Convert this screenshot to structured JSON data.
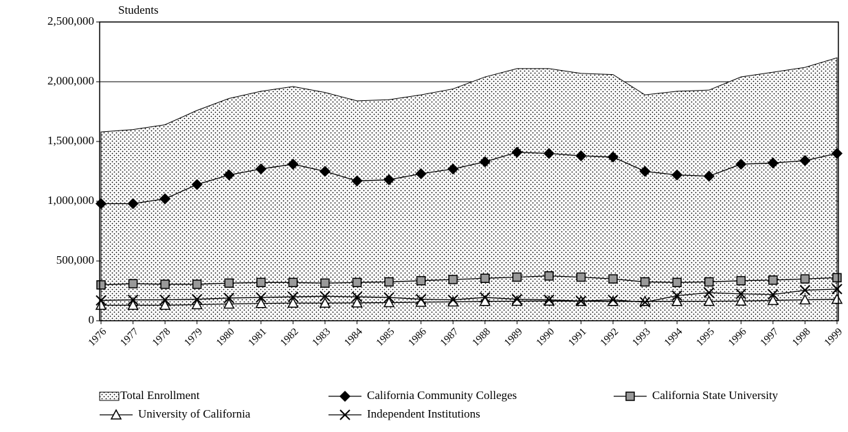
{
  "chart_data": {
    "type": "line",
    "y_label": "Students",
    "categories": [
      "1976",
      "1977",
      "1978",
      "1979",
      "1980",
      "1981",
      "1982",
      "1983",
      "1984",
      "1985",
      "1986",
      "1987",
      "1988",
      "1989",
      "1990",
      "1991",
      "1992",
      "1993",
      "1994",
      "1995",
      "1996",
      "1997",
      "1998",
      "1999"
    ],
    "series": [
      {
        "name": "Total Enrollment",
        "type": "area",
        "color": "#000000",
        "marker": "none",
        "values": [
          1580000,
          1600000,
          1640000,
          1760000,
          1860000,
          1920000,
          1960000,
          1910000,
          1840000,
          1850000,
          1890000,
          1940000,
          2040000,
          2110000,
          2110000,
          2070000,
          2060000,
          1890000,
          1920000,
          1930000,
          2040000,
          2080000,
          2120000,
          2200000
        ]
      },
      {
        "name": "California Community Colleges",
        "type": "line",
        "color": "#000000",
        "marker": "diamond",
        "values": [
          980000,
          980000,
          1020000,
          1140000,
          1220000,
          1270000,
          1310000,
          1250000,
          1170000,
          1180000,
          1230000,
          1270000,
          1330000,
          1410000,
          1400000,
          1380000,
          1370000,
          1250000,
          1220000,
          1210000,
          1310000,
          1320000,
          1340000,
          1400000
        ]
      },
      {
        "name": "California State University",
        "type": "line",
        "color": "#000000",
        "marker": "square",
        "values": [
          300000,
          310000,
          305000,
          305000,
          315000,
          320000,
          320000,
          315000,
          320000,
          325000,
          335000,
          345000,
          355000,
          365000,
          375000,
          365000,
          350000,
          325000,
          320000,
          325000,
          335000,
          340000,
          350000,
          360000
        ]
      },
      {
        "name": "University of California",
        "type": "line",
        "color": "#000000",
        "marker": "triangle",
        "values": [
          130000,
          130000,
          130000,
          135000,
          140000,
          145000,
          148000,
          148000,
          150000,
          152000,
          155000,
          158000,
          162000,
          164000,
          165000,
          163000,
          162000,
          162000,
          162000,
          163000,
          165000,
          170000,
          175000,
          180000
        ]
      },
      {
        "name": "Independent Institutions",
        "type": "line",
        "color": "#000000",
        "marker": "x",
        "values": [
          170000,
          175000,
          175000,
          180000,
          190000,
          195000,
          200000,
          205000,
          200000,
          195000,
          180000,
          175000,
          195000,
          180000,
          175000,
          165000,
          175000,
          155000,
          210000,
          235000,
          225000,
          220000,
          255000,
          265000
        ]
      }
    ],
    "ylim": [
      0,
      2500000
    ],
    "yticks": [
      0,
      {
        "value": 500000,
        "label": "500,000"
      },
      {
        "value": 1000000,
        "label": "1,000,000"
      },
      {
        "value": 1500000,
        "label": "1,500,000"
      },
      {
        "value": 2000000,
        "label": "2,000,000"
      },
      {
        "value": 2500000,
        "label": "2,500,000"
      }
    ],
    "grid": true,
    "legend": "bottom"
  }
}
